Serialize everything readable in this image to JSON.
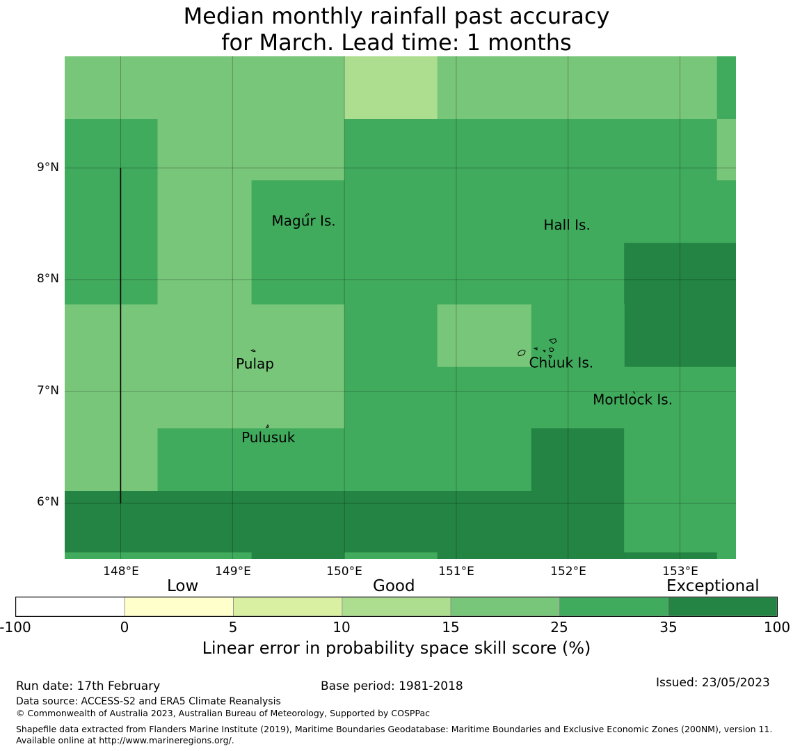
{
  "title": {
    "line1": "Median monthly rainfall past accuracy",
    "line2": "for March. Lead time: 1 months"
  },
  "map": {
    "lon_range": [
      147.5,
      153.5
    ],
    "lat_range": [
      5.5,
      10.0
    ],
    "gridline_color": "#000000",
    "x_ticks": [
      "148°E",
      "149°E",
      "150°E",
      "151°E",
      "152°E",
      "153°E"
    ],
    "y_ticks": [
      "9°N",
      "8°N",
      "7°N",
      "6°N"
    ],
    "places": [
      {
        "name": "Magur Is.",
        "lon": 149.35,
        "lat": 8.52
      },
      {
        "name": "Hall Is.",
        "lon": 151.78,
        "lat": 8.48
      },
      {
        "name": "Pulap",
        "lon": 149.03,
        "lat": 7.24
      },
      {
        "name": "Chuuk Is.",
        "lon": 151.65,
        "lat": 7.25
      },
      {
        "name": "Mortlock Is.",
        "lon": 152.22,
        "lat": 6.92
      },
      {
        "name": "Pulusuk",
        "lon": 149.08,
        "lat": 6.58
      }
    ],
    "boundary_line": {
      "lon": 148.0,
      "lat_from": 6.0,
      "lat_to": 9.0
    },
    "skill_cells": [
      {
        "lon0": 147.5,
        "lon1": 150.0,
        "lat0": 9.44,
        "lat1": 10.0,
        "score": 20
      },
      {
        "lon0": 150.0,
        "lon1": 150.83,
        "lat0": 9.44,
        "lat1": 10.0,
        "score": 12
      },
      {
        "lon0": 150.83,
        "lon1": 153.33,
        "lat0": 9.44,
        "lat1": 10.0,
        "score": 20
      },
      {
        "lon0": 153.33,
        "lon1": 153.5,
        "lat0": 9.44,
        "lat1": 10.0,
        "score": 30
      },
      {
        "lon0": 147.5,
        "lon1": 148.33,
        "lat0": 7.78,
        "lat1": 9.44,
        "score": 30
      },
      {
        "lon0": 148.33,
        "lon1": 150.0,
        "lat0": 8.89,
        "lat1": 9.44,
        "score": 20
      },
      {
        "lon0": 148.33,
        "lon1": 149.17,
        "lat0": 7.78,
        "lat1": 8.89,
        "score": 20
      },
      {
        "lon0": 149.17,
        "lon1": 150.0,
        "lat0": 7.78,
        "lat1": 8.89,
        "score": 30
      },
      {
        "lon0": 150.0,
        "lon1": 153.33,
        "lat0": 8.33,
        "lat1": 9.44,
        "score": 30
      },
      {
        "lon0": 153.33,
        "lon1": 153.5,
        "lat0": 8.89,
        "lat1": 9.44,
        "score": 20
      },
      {
        "lon0": 153.33,
        "lon1": 153.5,
        "lat0": 8.33,
        "lat1": 8.89,
        "score": 30
      },
      {
        "lon0": 150.0,
        "lon1": 152.5,
        "lat0": 7.78,
        "lat1": 8.33,
        "score": 30
      },
      {
        "lon0": 152.5,
        "lon1": 153.5,
        "lat0": 7.22,
        "lat1": 8.33,
        "score": 40
      },
      {
        "lon0": 147.5,
        "lon1": 150.0,
        "lat0": 6.67,
        "lat1": 7.78,
        "score": 20
      },
      {
        "lon0": 150.0,
        "lon1": 150.83,
        "lat0": 6.67,
        "lat1": 7.78,
        "score": 30
      },
      {
        "lon0": 150.83,
        "lon1": 151.67,
        "lat0": 7.22,
        "lat1": 7.78,
        "score": 20
      },
      {
        "lon0": 151.67,
        "lon1": 152.5,
        "lat0": 7.22,
        "lat1": 7.78,
        "score": 30
      },
      {
        "lon0": 150.83,
        "lon1": 153.5,
        "lat0": 6.67,
        "lat1": 7.22,
        "score": 30
      },
      {
        "lon0": 147.5,
        "lon1": 148.33,
        "lat0": 6.11,
        "lat1": 6.67,
        "score": 20
      },
      {
        "lon0": 148.33,
        "lon1": 151.67,
        "lat0": 6.11,
        "lat1": 6.67,
        "score": 30
      },
      {
        "lon0": 151.67,
        "lon1": 152.5,
        "lat0": 5.56,
        "lat1": 6.67,
        "score": 40
      },
      {
        "lon0": 152.5,
        "lon1": 153.5,
        "lat0": 5.56,
        "lat1": 6.67,
        "score": 30
      },
      {
        "lon0": 147.5,
        "lon1": 151.67,
        "lat0": 5.56,
        "lat1": 6.11,
        "score": 40
      },
      {
        "lon0": 147.5,
        "lon1": 149.17,
        "lat0": 5.5,
        "lat1": 5.56,
        "score": 30
      },
      {
        "lon0": 149.17,
        "lon1": 150.0,
        "lat0": 5.5,
        "lat1": 5.56,
        "score": 40
      },
      {
        "lon0": 150.0,
        "lon1": 150.83,
        "lat0": 5.5,
        "lat1": 5.56,
        "score": 30
      },
      {
        "lon0": 150.83,
        "lon1": 152.5,
        "lat0": 5.5,
        "lat1": 5.56,
        "score": 40
      },
      {
        "lon0": 152.5,
        "lon1": 153.33,
        "lat0": 5.5,
        "lat1": 5.56,
        "score": 40
      },
      {
        "lon0": 153.33,
        "lon1": 153.5,
        "lat0": 5.5,
        "lat1": 5.56,
        "score": 30
      }
    ]
  },
  "colorbar": {
    "categories": [
      "Low",
      "Good",
      "Exceptional"
    ],
    "bounds": [
      "-100",
      "0",
      "5",
      "10",
      "15",
      "25",
      "35",
      "100"
    ],
    "colors": [
      "#ffffff",
      "#ffffcc",
      "#d9f0a3",
      "#addd8e",
      "#78c679",
      "#41ab5d",
      "#238443"
    ],
    "label": "Linear error in probability space skill score (%)"
  },
  "footer": {
    "run_date": "Run date: 17th February",
    "base_period": "Base period: 1981-2018",
    "issued": "Issued: 23/05/2023",
    "data_source": "Data source: ACCESS-S2 and ERA5 Climate Reanalysis",
    "copyright": "© Commonwealth of Australia 2023, Australian Bureau of Meteorology, Supported by COSPPac",
    "shapefile": "Shapefile data extracted from Flanders Marine Institute (2019), Maritime Boundaries Geodatabase: Maritime Boundaries and Exclusive Economic Zones (200NM), version 11. Available online at http://www.marineregions.org/."
  }
}
